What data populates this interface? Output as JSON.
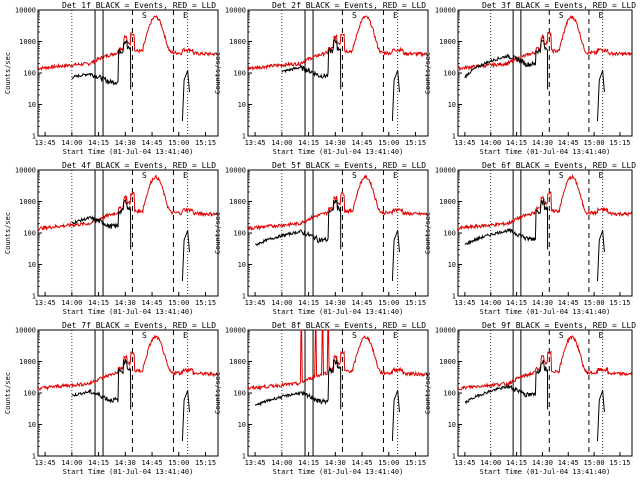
{
  "colors": {
    "events": "#000000",
    "lld": "#e00000",
    "axis": "#000000"
  },
  "chart_data": [
    {
      "type": "line",
      "title": "Det 1f BLACK = Events, RED = LLD",
      "ylabel": "Counts/sec",
      "xlabel": "Start Time (01-Jul-04 13:41:40)",
      "xticks": [
        "13:45",
        "14:00",
        "14:15",
        "14:30",
        "14:45",
        "15:00",
        "15:15"
      ],
      "yticks": [
        "1",
        "10",
        "100",
        "1000",
        "10000"
      ],
      "ylim": [
        1,
        10000
      ],
      "yscale": "log",
      "markers": [
        "S",
        "E"
      ],
      "events_start": "14:00",
      "events_bump": 95
    },
    {
      "type": "line",
      "title": "Det 2f BLACK = Events, RED = LLD",
      "ylabel": "Counts/sec",
      "xlabel": "Start Time (01-Jul-04 13:41:40)",
      "xticks": [
        "13:45",
        "14:00",
        "14:15",
        "14:30",
        "14:45",
        "15:00",
        "15:15"
      ],
      "yticks": [
        "1",
        "10",
        "100",
        "1000",
        "10000"
      ],
      "ylim": [
        1,
        10000
      ],
      "yscale": "log",
      "markers": [
        "S",
        "E"
      ],
      "events_start": "14:00",
      "events_bump": 150
    },
    {
      "type": "line",
      "title": "Det 3f BLACK = Events, RED = LLD",
      "ylabel": "Counts/sec",
      "xlabel": "Start Time (01-Jul-04 13:41:40)",
      "xticks": [
        "13:45",
        "14:00",
        "14:15",
        "14:30",
        "14:45",
        "15:00",
        "15:15"
      ],
      "yticks": [
        "1",
        "10",
        "100",
        "1000",
        "10000"
      ],
      "ylim": [
        1,
        10000
      ],
      "yscale": "log",
      "markers": [
        "S",
        "E"
      ],
      "events_start": "13:45",
      "events_bump": 350
    },
    {
      "type": "line",
      "title": "Det 4f BLACK = Events, RED = LLD",
      "ylabel": "Counts/sec",
      "xlabel": "Start Time (01-Jul-04 13:41:40)",
      "xticks": [
        "13:45",
        "14:00",
        "14:15",
        "14:30",
        "14:45",
        "15:00",
        "15:15"
      ],
      "yticks": [
        "1",
        "10",
        "100",
        "1000",
        "10000"
      ],
      "ylim": [
        1,
        10000
      ],
      "yscale": "log",
      "markers": [
        "S",
        "E"
      ],
      "events_start": "14:00",
      "events_bump": 300
    },
    {
      "type": "line",
      "title": "Det 5f BLACK = Events, RED = LLD",
      "ylabel": "Counts/sec",
      "xlabel": "Start Time (01-Jul-04 13:41:40)",
      "xticks": [
        "13:45",
        "14:00",
        "14:15",
        "14:30",
        "14:45",
        "15:00",
        "15:15"
      ],
      "yticks": [
        "1",
        "10",
        "100",
        "1000",
        "10000"
      ],
      "ylim": [
        1,
        10000
      ],
      "yscale": "log",
      "markers": [
        "S",
        "E"
      ],
      "events_start": "13:45",
      "events_bump": 110
    },
    {
      "type": "line",
      "title": "Det 6f BLACK = Events, RED = LLD",
      "ylabel": "Counts/sec",
      "xlabel": "Start Time (01-Jul-04 13:41:40)",
      "xticks": [
        "13:45",
        "14:00",
        "14:15",
        "14:30",
        "14:45",
        "15:00",
        "15:15"
      ],
      "yticks": [
        "1",
        "10",
        "100",
        "1000",
        "10000"
      ],
      "ylim": [
        1,
        10000
      ],
      "yscale": "log",
      "markers": [
        "S",
        "E"
      ],
      "events_start": "13:45",
      "events_bump": 120
    },
    {
      "type": "line",
      "title": "Det 7f BLACK = Events, RED = LLD",
      "ylabel": "Counts/sec",
      "xlabel": "Start Time (01-Jul-04 13:41:40)",
      "xticks": [
        "13:45",
        "14:00",
        "14:15",
        "14:30",
        "14:45",
        "15:00",
        "15:15"
      ],
      "yticks": [
        "1",
        "10",
        "100",
        "1000",
        "10000"
      ],
      "ylim": [
        1,
        10000
      ],
      "yscale": "log",
      "markers": [
        "S",
        "E"
      ],
      "events_start": "14:00",
      "events_bump": 110
    },
    {
      "type": "line",
      "title": "Det 8f BLACK = Events, RED = LLD",
      "ylabel": "Counts/sec",
      "xlabel": "Start Time (01-Jul-04 13:41:40)",
      "xticks": [
        "13:45",
        "14:00",
        "14:15",
        "14:30",
        "14:45",
        "15:00",
        "15:15"
      ],
      "yticks": [
        "1",
        "10",
        "100",
        "1000",
        "10000"
      ],
      "ylim": [
        1,
        10000
      ],
      "yscale": "log",
      "markers": [
        "S",
        "E"
      ],
      "events_start": "13:45",
      "events_bump": 100,
      "lld_spikes": true
    },
    {
      "type": "line",
      "title": "Det 9f BLACK = Events, RED = LLD",
      "ylabel": "Counts/sec",
      "xlabel": "Start Time (01-Jul-04 13:41:40)",
      "xticks": [
        "13:45",
        "14:00",
        "14:15",
        "14:30",
        "14:45",
        "15:00",
        "15:15"
      ],
      "yticks": [
        "1",
        "10",
        "100",
        "1000",
        "10000"
      ],
      "ylim": [
        1,
        10000
      ],
      "yscale": "log",
      "markers": [
        "S",
        "E"
      ],
      "events_start": "13:45",
      "events_bump": 160
    }
  ]
}
